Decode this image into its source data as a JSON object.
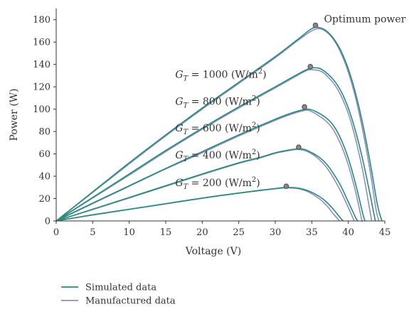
{
  "chart_data": {
    "type": "line",
    "xlabel": "Voltage (V)",
    "ylabel": "Power (W)",
    "xlim": [
      0,
      45
    ],
    "ylim": [
      0,
      190
    ],
    "xticks": [
      0,
      5,
      10,
      15,
      20,
      25,
      30,
      35,
      40,
      45
    ],
    "yticks": [
      0,
      20,
      40,
      60,
      80,
      100,
      120,
      140,
      160,
      180
    ],
    "grid": false,
    "legend_position": "bottom-left",
    "colors": {
      "simulated": "#2a8a78",
      "manufactured": "#8a8fc4",
      "marker": "#555555"
    },
    "legend": [
      {
        "key": "simulated",
        "label": "Simulated data"
      },
      {
        "key": "manufactured",
        "label": "Manufactured data"
      }
    ],
    "optimum_label": "Optimum power",
    "curves": [
      {
        "irradiance": "1000 (W/m2)",
        "simulated": [
          [
            0,
            0
          ],
          [
            5,
            26
          ],
          [
            10,
            52
          ],
          [
            15,
            77
          ],
          [
            20,
            101
          ],
          [
            25,
            124
          ],
          [
            30,
            147
          ],
          [
            33,
            162
          ],
          [
            35,
            172
          ],
          [
            36,
            173
          ],
          [
            37,
            170
          ],
          [
            38,
            163
          ],
          [
            39,
            152
          ],
          [
            40,
            136
          ],
          [
            41,
            114
          ],
          [
            42,
            86
          ],
          [
            43,
            52
          ],
          [
            44,
            14
          ],
          [
            44.6,
            0
          ]
        ],
        "manufactured": [
          [
            0,
            0
          ],
          [
            5,
            25.5
          ],
          [
            10,
            51
          ],
          [
            15,
            76
          ],
          [
            20,
            100
          ],
          [
            25,
            123
          ],
          [
            30,
            146
          ],
          [
            33,
            161
          ],
          [
            35,
            170
          ],
          [
            36,
            172
          ],
          [
            37,
            169
          ],
          [
            38,
            162
          ],
          [
            39,
            150
          ],
          [
            40,
            133
          ],
          [
            41,
            110
          ],
          [
            42,
            80
          ],
          [
            43,
            44
          ],
          [
            43.8,
            10
          ],
          [
            44.2,
            0
          ]
        ],
        "mpp": [
          35.5,
          175
        ]
      },
      {
        "irradiance": "800 (W/m2)",
        "simulated": [
          [
            0,
            0
          ],
          [
            5,
            21
          ],
          [
            10,
            42
          ],
          [
            15,
            63
          ],
          [
            20,
            83
          ],
          [
            25,
            102
          ],
          [
            30,
            120
          ],
          [
            33,
            131
          ],
          [
            34.5,
            136
          ],
          [
            35.5,
            137
          ],
          [
            36.5,
            135
          ],
          [
            38,
            126
          ],
          [
            39,
            116
          ],
          [
            40,
            101
          ],
          [
            41,
            80
          ],
          [
            42,
            54
          ],
          [
            43,
            23
          ],
          [
            43.7,
            0
          ]
        ],
        "manufactured": [
          [
            0,
            0
          ],
          [
            5,
            20.5
          ],
          [
            10,
            41
          ],
          [
            15,
            62
          ],
          [
            20,
            82
          ],
          [
            25,
            101
          ],
          [
            30,
            119
          ],
          [
            33,
            130
          ],
          [
            34.5,
            135
          ],
          [
            35.5,
            135
          ],
          [
            36.5,
            133
          ],
          [
            38,
            123
          ],
          [
            39,
            112
          ],
          [
            40,
            96
          ],
          [
            41,
            73
          ],
          [
            42,
            44
          ],
          [
            42.8,
            15
          ],
          [
            43.2,
            0
          ]
        ],
        "mpp": [
          34.8,
          138
        ]
      },
      {
        "irradiance": "600 (W/m2)",
        "simulated": [
          [
            0,
            0
          ],
          [
            5,
            16
          ],
          [
            10,
            31.5
          ],
          [
            15,
            47
          ],
          [
            20,
            62
          ],
          [
            25,
            77
          ],
          [
            30,
            91
          ],
          [
            32,
            96
          ],
          [
            33.5,
            99
          ],
          [
            34.5,
            100
          ],
          [
            35.5,
            98
          ],
          [
            37,
            92
          ],
          [
            38,
            85
          ],
          [
            39,
            73
          ],
          [
            40,
            56
          ],
          [
            41,
            33
          ],
          [
            42,
            6
          ],
          [
            42.3,
            0
          ]
        ],
        "manufactured": [
          [
            0,
            0
          ],
          [
            5,
            15.5
          ],
          [
            10,
            31
          ],
          [
            15,
            46.5
          ],
          [
            20,
            61
          ],
          [
            25,
            76
          ],
          [
            30,
            90
          ],
          [
            32,
            95
          ],
          [
            33.5,
            98
          ],
          [
            34.5,
            99
          ],
          [
            35.5,
            96
          ],
          [
            37,
            89
          ],
          [
            38,
            81
          ],
          [
            39,
            68
          ],
          [
            40,
            50
          ],
          [
            41,
            26
          ],
          [
            41.8,
            2
          ],
          [
            41.9,
            0
          ]
        ],
        "mpp": [
          34.0,
          102
        ]
      },
      {
        "irradiance": "400 (W/m2)",
        "simulated": [
          [
            0,
            0
          ],
          [
            5,
            10.5
          ],
          [
            10,
            21
          ],
          [
            15,
            31.5
          ],
          [
            20,
            42
          ],
          [
            25,
            52
          ],
          [
            28,
            57
          ],
          [
            30,
            61
          ],
          [
            31.5,
            63
          ],
          [
            33,
            64.5
          ],
          [
            34,
            64
          ],
          [
            35,
            61
          ],
          [
            36,
            57
          ],
          [
            37,
            51
          ],
          [
            38,
            42
          ],
          [
            39,
            31
          ],
          [
            40,
            17
          ],
          [
            41,
            3
          ],
          [
            41.3,
            0
          ]
        ],
        "manufactured": [
          [
            0,
            0
          ],
          [
            5,
            10.2
          ],
          [
            10,
            20.5
          ],
          [
            15,
            31
          ],
          [
            20,
            41.5
          ],
          [
            25,
            51.5
          ],
          [
            28,
            56.5
          ],
          [
            30,
            60.5
          ],
          [
            31.5,
            62.5
          ],
          [
            33,
            64
          ],
          [
            34,
            63
          ],
          [
            35,
            60
          ],
          [
            36,
            55
          ],
          [
            37,
            48
          ],
          [
            38,
            38
          ],
          [
            39,
            26
          ],
          [
            40,
            12
          ],
          [
            40.8,
            0
          ]
        ],
        "mpp": [
          33.2,
          66
        ]
      },
      {
        "irradiance": "200 (W/m2)",
        "simulated": [
          [
            0,
            0
          ],
          [
            5,
            5.5
          ],
          [
            10,
            10.5
          ],
          [
            15,
            15.5
          ],
          [
            20,
            20.5
          ],
          [
            25,
            25
          ],
          [
            28,
            27.5
          ],
          [
            30,
            29
          ],
          [
            31.5,
            30
          ],
          [
            33,
            29.5
          ],
          [
            34.5,
            27
          ],
          [
            36,
            22
          ],
          [
            37,
            17
          ],
          [
            38,
            10
          ],
          [
            39,
            2
          ],
          [
            39.3,
            0
          ]
        ],
        "manufactured": [
          [
            0,
            0
          ],
          [
            5,
            5.3
          ],
          [
            10,
            10.3
          ],
          [
            15,
            15.2
          ],
          [
            20,
            20.2
          ],
          [
            25,
            24.8
          ],
          [
            28,
            27.2
          ],
          [
            30,
            28.7
          ],
          [
            31.5,
            29.5
          ],
          [
            33,
            29
          ],
          [
            34.5,
            26
          ],
          [
            36,
            20
          ],
          [
            37,
            14
          ],
          [
            38,
            6
          ],
          [
            38.8,
            0
          ]
        ],
        "mpp": [
          31.5,
          31
        ]
      }
    ]
  }
}
